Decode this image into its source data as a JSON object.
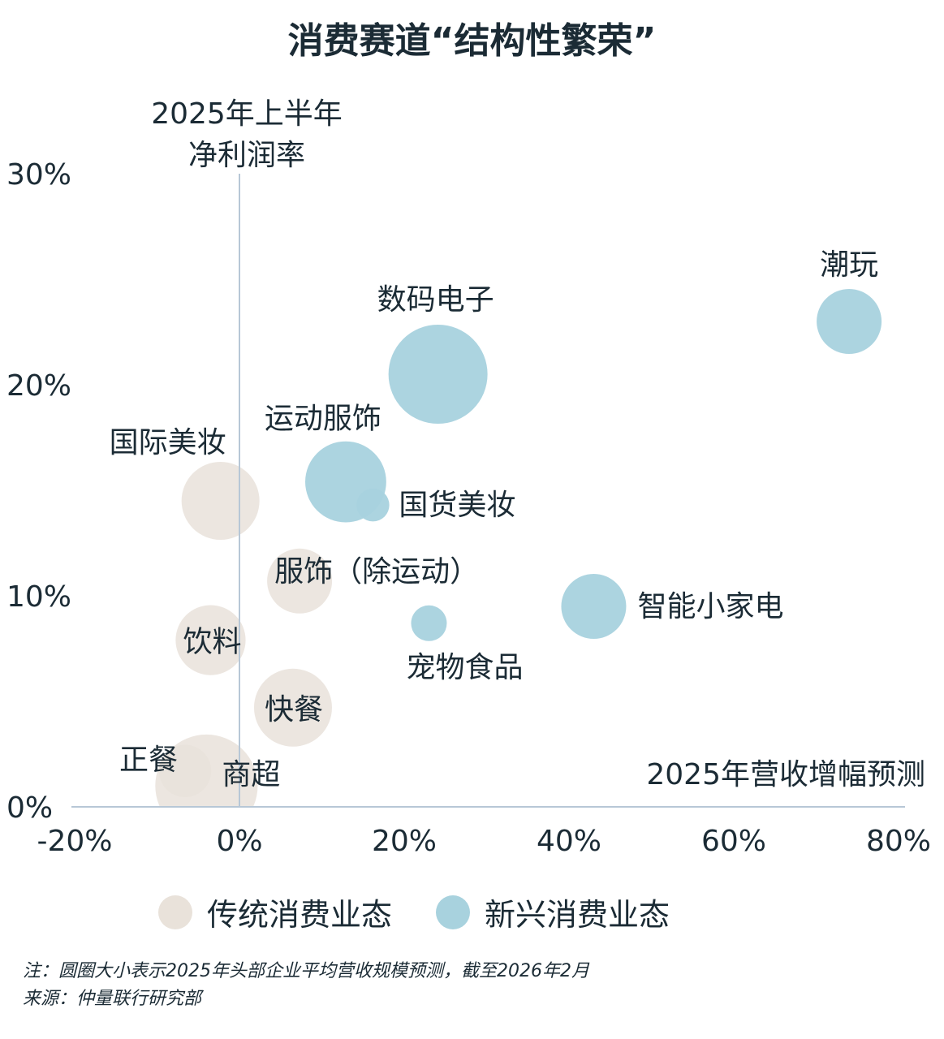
{
  "chart_data": {
    "type": "scatter",
    "title": "消费赛道“结构性繁荣”",
    "xlabel": "2025年营收增幅预测",
    "ylabel": "2025年上半年净利润率",
    "xlim": [
      -20,
      80
    ],
    "ylim": [
      0,
      30
    ],
    "x_ticks": [
      "-20%",
      "0%",
      "20%",
      "40%",
      "60%",
      "80%"
    ],
    "y_ticks": [
      "0%",
      "10%",
      "20%",
      "30%"
    ],
    "grid": false,
    "legend_position": "bottom",
    "size_meaning": "圆圈大小表示2025年头部企业平均营收规模预测",
    "series": [
      {
        "name": "传统消费业态",
        "color": "#e9e2da",
        "points": [
          {
            "label": "国际美妆",
            "x": -2.3,
            "y": 14.5,
            "size": 0.62
          },
          {
            "label": "服饰（除运动）",
            "x": 7.3,
            "y": 10.7,
            "size": 0.43
          },
          {
            "label": "饮料",
            "x": -3.5,
            "y": 7.9,
            "size": 0.5
          },
          {
            "label": "快餐",
            "x": 6.5,
            "y": 4.7,
            "size": 0.62
          },
          {
            "label": "正餐",
            "x": -6.6,
            "y": 1.7,
            "size": 0.28
          },
          {
            "label": "商超",
            "x": -4.0,
            "y": 1.0,
            "size": 1.07
          }
        ]
      },
      {
        "name": "新兴消费业态",
        "color": "#a8d2de",
        "points": [
          {
            "label": "潮玩",
            "x": 74.0,
            "y": 23.0,
            "size": 0.43
          },
          {
            "label": "数码电子",
            "x": 24.1,
            "y": 20.5,
            "size": 1.0
          },
          {
            "label": "运动服饰",
            "x": 12.9,
            "y": 15.4,
            "size": 0.67
          },
          {
            "label": "国货美妆",
            "x": 16.2,
            "y": 14.3,
            "size": 0.11
          },
          {
            "label": "智能小家电",
            "x": 43.0,
            "y": 9.5,
            "size": 0.43
          },
          {
            "label": "宠物食品",
            "x": 23.0,
            "y": 8.7,
            "size": 0.13
          }
        ]
      }
    ]
  },
  "ylabel_lines": [
    "2025年上半年",
    "净利润率"
  ],
  "notes": {
    "note": "注：圆圈大小表示2025年头部企业平均营收规模预测，截至2026年2月",
    "source": "来源：仲量联行研究部"
  }
}
